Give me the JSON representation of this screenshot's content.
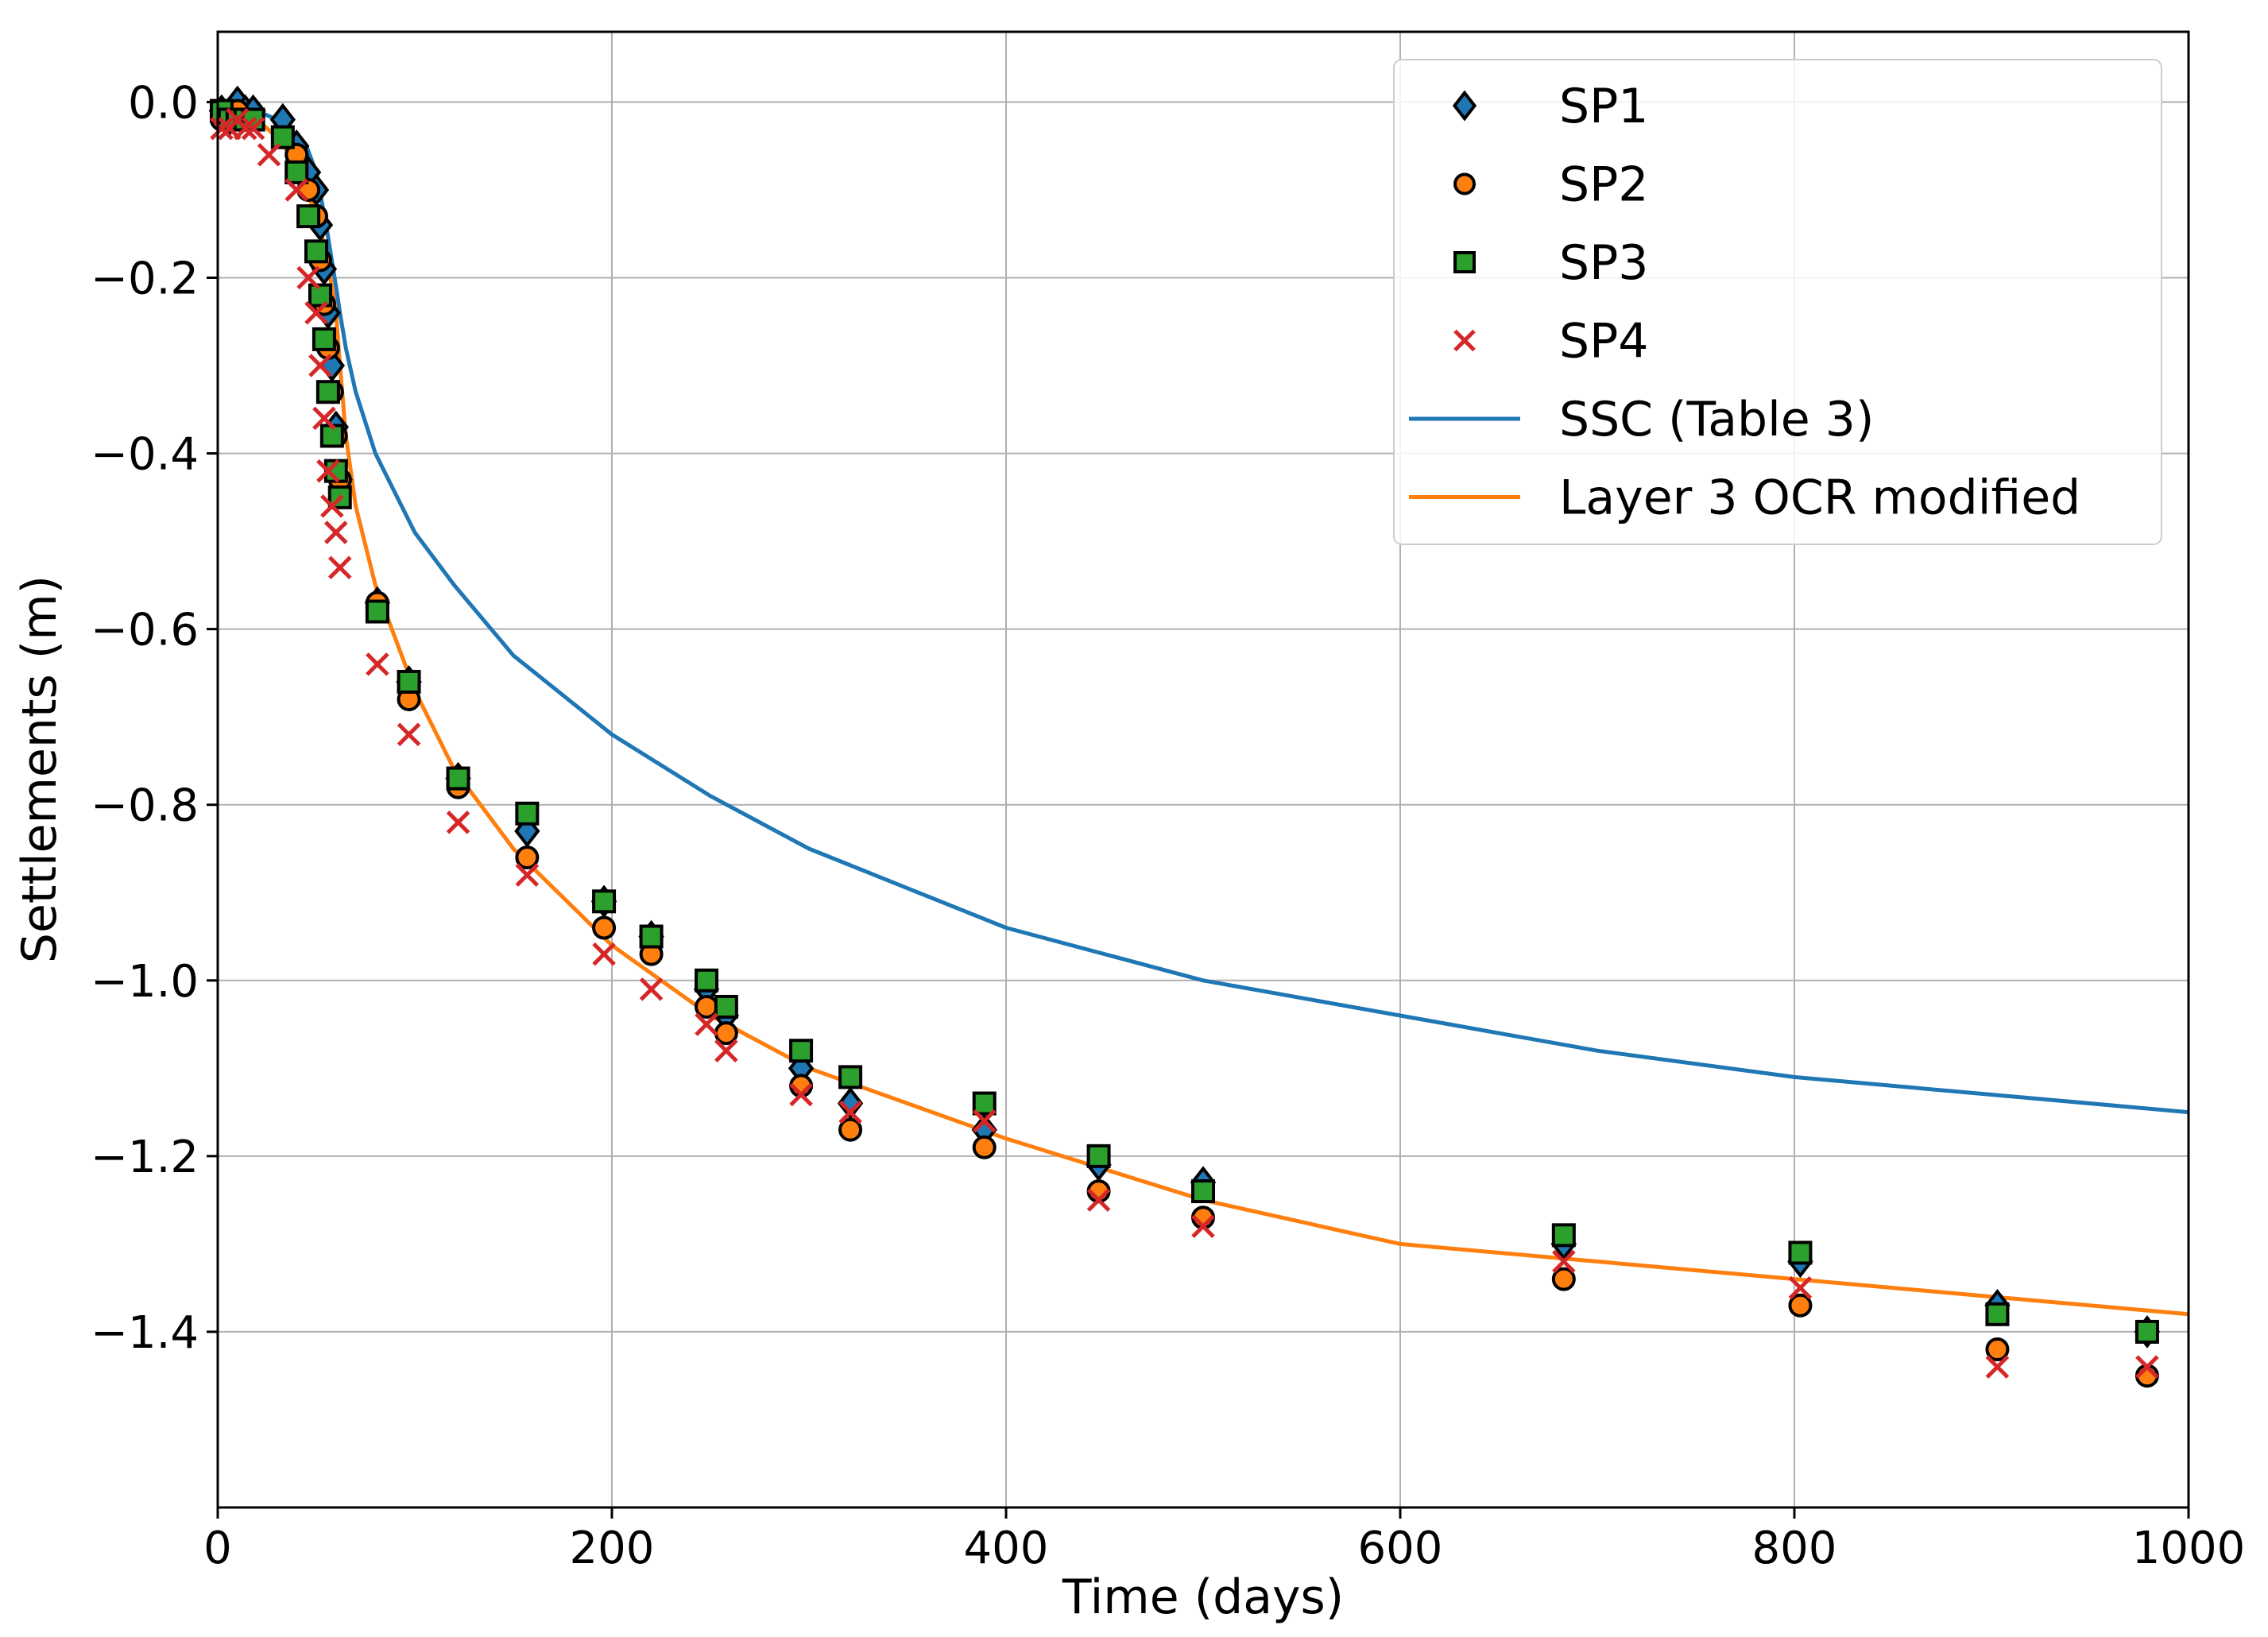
{
  "chart_data": {
    "type": "scatter",
    "title": "",
    "xlabel": "Time (days)",
    "ylabel": "Settlements (m)",
    "xlim": [
      0,
      1000
    ],
    "ylim": [
      -1.6,
      0.08
    ],
    "grid": true,
    "legend_position": "top-right",
    "x_ticks": [
      {
        "value": 0,
        "label": "0"
      },
      {
        "value": 200,
        "label": "200"
      },
      {
        "value": 400,
        "label": "400"
      },
      {
        "value": 600,
        "label": "600"
      },
      {
        "value": 800,
        "label": "800"
      },
      {
        "value": 1000,
        "label": "1000"
      }
    ],
    "y_ticks": [
      {
        "value": 0.0,
        "label": "0.0"
      },
      {
        "value": -0.2,
        "label": "−0.2"
      },
      {
        "value": -0.4,
        "label": "−0.4"
      },
      {
        "value": -0.6,
        "label": "−0.6"
      },
      {
        "value": -0.8,
        "label": "−0.8"
      },
      {
        "value": -1.0,
        "label": "−1.0"
      },
      {
        "value": -1.2,
        "label": "−1.2"
      },
      {
        "value": -1.4,
        "label": "−1.4"
      }
    ],
    "scatter_series": [
      {
        "name": "SP1",
        "marker": "diamond",
        "color": "#1f77b4",
        "edge": "#000000",
        "x": [
          2,
          6,
          10,
          14,
          18,
          33,
          40,
          46,
          50,
          52,
          54,
          56,
          58,
          60,
          62,
          81,
          97,
          122,
          157,
          196,
          220,
          248,
          258,
          296,
          321,
          389,
          447,
          500,
          683,
          803,
          903,
          979
        ],
        "y": [
          -0.01,
          -0.02,
          -0.0,
          -0.01,
          -0.01,
          -0.02,
          -0.05,
          -0.08,
          -0.1,
          -0.14,
          -0.19,
          -0.24,
          -0.3,
          -0.37,
          -0.43,
          -0.57,
          -0.66,
          -0.77,
          -0.83,
          -0.91,
          -0.95,
          -1.01,
          -1.04,
          -1.1,
          -1.14,
          -1.17,
          -1.21,
          -1.23,
          -1.3,
          -1.32,
          -1.37,
          -1.4
        ]
      },
      {
        "name": "SP2",
        "marker": "circle",
        "color": "#ff7f0e",
        "edge": "#000000",
        "x": [
          2,
          6,
          10,
          14,
          18,
          33,
          40,
          46,
          50,
          52,
          54,
          56,
          58,
          60,
          62,
          81,
          97,
          122,
          157,
          196,
          220,
          248,
          258,
          296,
          321,
          389,
          447,
          500,
          683,
          803,
          903,
          979
        ],
        "y": [
          -0.02,
          -0.02,
          -0.01,
          -0.02,
          -0.02,
          -0.04,
          -0.06,
          -0.1,
          -0.13,
          -0.18,
          -0.23,
          -0.28,
          -0.33,
          -0.38,
          -0.43,
          -0.57,
          -0.68,
          -0.78,
          -0.86,
          -0.94,
          -0.97,
          -1.03,
          -1.06,
          -1.12,
          -1.17,
          -1.19,
          -1.24,
          -1.27,
          -1.34,
          -1.37,
          -1.42,
          -1.45
        ]
      },
      {
        "name": "SP3",
        "marker": "square",
        "color": "#2ca02c",
        "edge": "#000000",
        "x": [
          2,
          6,
          10,
          14,
          18,
          33,
          40,
          46,
          50,
          52,
          54,
          56,
          58,
          60,
          62,
          81,
          97,
          122,
          157,
          196,
          220,
          248,
          258,
          296,
          321,
          389,
          447,
          500,
          683,
          803,
          903,
          979
        ],
        "y": [
          -0.01,
          -0.02,
          -0.02,
          -0.02,
          -0.02,
          -0.04,
          -0.08,
          -0.13,
          -0.17,
          -0.22,
          -0.27,
          -0.33,
          -0.38,
          -0.42,
          -0.45,
          -0.58,
          -0.66,
          -0.77,
          -0.81,
          -0.91,
          -0.95,
          -1.0,
          -1.03,
          -1.08,
          -1.11,
          -1.14,
          -1.2,
          -1.24,
          -1.29,
          -1.31,
          -1.38,
          -1.4
        ]
      },
      {
        "name": "SP4",
        "marker": "x",
        "color": "#d62728",
        "x": [
          2,
          6,
          10,
          14,
          18,
          26,
          40,
          46,
          50,
          52,
          54,
          56,
          58,
          60,
          62,
          81,
          97,
          122,
          157,
          196,
          220,
          248,
          258,
          296,
          321,
          389,
          447,
          500,
          683,
          803,
          903,
          979
        ],
        "y": [
          -0.03,
          -0.03,
          -0.02,
          -0.03,
          -0.03,
          -0.06,
          -0.1,
          -0.2,
          -0.24,
          -0.3,
          -0.36,
          -0.42,
          -0.46,
          -0.49,
          -0.53,
          -0.64,
          -0.72,
          -0.82,
          -0.88,
          -0.97,
          -1.01,
          -1.05,
          -1.08,
          -1.13,
          -1.15,
          -1.16,
          -1.25,
          -1.28,
          -1.32,
          -1.35,
          -1.44,
          -1.44
        ]
      }
    ],
    "line_series": [
      {
        "name": "SSC (Table 3)",
        "color": "#1f77b4",
        "x": [
          0,
          10,
          20,
          30,
          40,
          45,
          50,
          55,
          60,
          62,
          65,
          70,
          80,
          100,
          120,
          150,
          200,
          250,
          300,
          400,
          500,
          600,
          700,
          800,
          900,
          1000
        ],
        "y": [
          -0.0,
          -0.01,
          -0.01,
          -0.02,
          -0.04,
          -0.05,
          -0.08,
          -0.14,
          -0.21,
          -0.24,
          -0.28,
          -0.33,
          -0.4,
          -0.49,
          -0.55,
          -0.63,
          -0.72,
          -0.79,
          -0.85,
          -0.94,
          -1.0,
          -1.04,
          -1.08,
          -1.11,
          -1.13,
          -1.15
        ]
      },
      {
        "name": "Layer 3 OCR modified",
        "color": "#ff7f0e",
        "x": [
          0,
          10,
          20,
          30,
          40,
          45,
          50,
          55,
          60,
          62,
          65,
          70,
          80,
          100,
          120,
          150,
          200,
          250,
          300,
          400,
          500,
          600,
          700,
          800,
          900,
          1000
        ],
        "y": [
          -0.0,
          -0.01,
          -0.02,
          -0.04,
          -0.07,
          -0.1,
          -0.13,
          -0.17,
          -0.24,
          -0.3,
          -0.38,
          -0.46,
          -0.55,
          -0.67,
          -0.76,
          -0.85,
          -0.96,
          -1.04,
          -1.1,
          -1.18,
          -1.25,
          -1.3,
          -1.32,
          -1.34,
          -1.36,
          -1.38
        ]
      }
    ]
  }
}
